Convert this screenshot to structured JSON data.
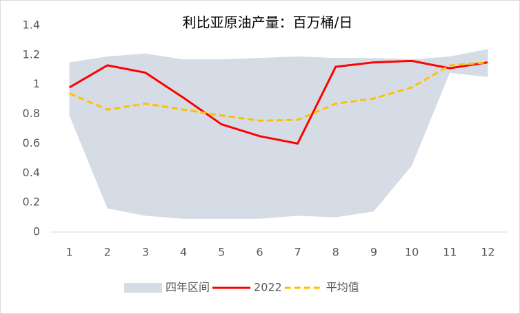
{
  "chart_data": {
    "type": "line",
    "title": "利比亚原油产量：百万桶/日",
    "categories": [
      "1",
      "2",
      "3",
      "4",
      "5",
      "6",
      "7",
      "8",
      "9",
      "10",
      "11",
      "12"
    ],
    "ylim": [
      0,
      1.4
    ],
    "yticks": [
      0,
      0.2,
      0.4,
      0.6,
      0.8,
      1,
      1.2,
      1.4
    ],
    "legend": "bottom",
    "series": [
      {
        "name": "四年区间",
        "color": "#d6dce5",
        "type": "band",
        "upper": [
          1.15,
          1.19,
          1.21,
          1.17,
          1.17,
          1.18,
          1.19,
          1.18,
          1.18,
          1.17,
          1.19,
          1.24
        ],
        "lower": [
          0.79,
          0.16,
          0.11,
          0.09,
          0.09,
          0.09,
          0.11,
          0.1,
          0.14,
          0.45,
          1.08,
          1.05
        ]
      },
      {
        "name": "2022",
        "color": "#ff0000",
        "values": [
          0.98,
          1.13,
          1.08,
          0.91,
          0.73,
          0.65,
          0.6,
          1.12,
          1.15,
          1.16,
          1.11,
          1.15
        ]
      },
      {
        "name": "平均值",
        "color": "#ffc000",
        "dashed": true,
        "values": [
          0.94,
          0.83,
          0.87,
          0.83,
          0.79,
          0.755,
          0.76,
          0.87,
          0.905,
          0.98,
          1.13,
          1.15
        ]
      }
    ]
  }
}
